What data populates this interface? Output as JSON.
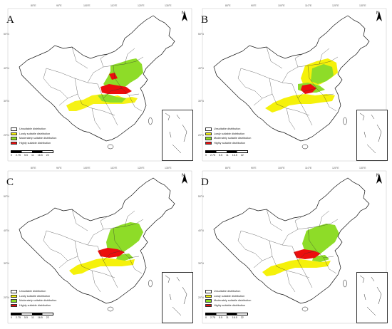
{
  "colors": {
    "unsuitable": "#ffffff",
    "lowly": "#f5f10a",
    "moderately": "#8edc28",
    "highly": "#ec0d0d",
    "border": "#111111"
  },
  "lon_ticks": [
    "80°E",
    "90°E",
    "100°E",
    "110°E",
    "120°E",
    "130°E"
  ],
  "lat_ticks": [
    "50°N",
    "40°N",
    "30°N",
    "20°N"
  ],
  "north_label": "N",
  "scale_labels": [
    "0",
    "2.75",
    "5.5",
    "11",
    "16.5",
    "22"
  ],
  "panels": [
    {
      "letter": "A",
      "legend": [
        "Unsuitable distribution",
        "Lowly suitable distribution",
        "Moderately suitable distribution",
        "Highly suitable distribution"
      ]
    },
    {
      "letter": "B",
      "legend": [
        "Unsuitable distribution",
        "Lowly suitable distribution",
        "Moderately suitable distribution",
        "Highly suitable distribution"
      ]
    },
    {
      "letter": "C",
      "legend": [
        "Unsuitable distribution",
        "Lowly suitable distribution",
        "Moderately suitable distribution",
        "Highly suitable distribution"
      ]
    },
    {
      "letter": "D",
      "legend": [
        "Unsuitable distribution",
        "Lowly suitable distribution",
        "Moderately suitable distribution",
        "Highly suitable distribution"
      ]
    }
  ]
}
